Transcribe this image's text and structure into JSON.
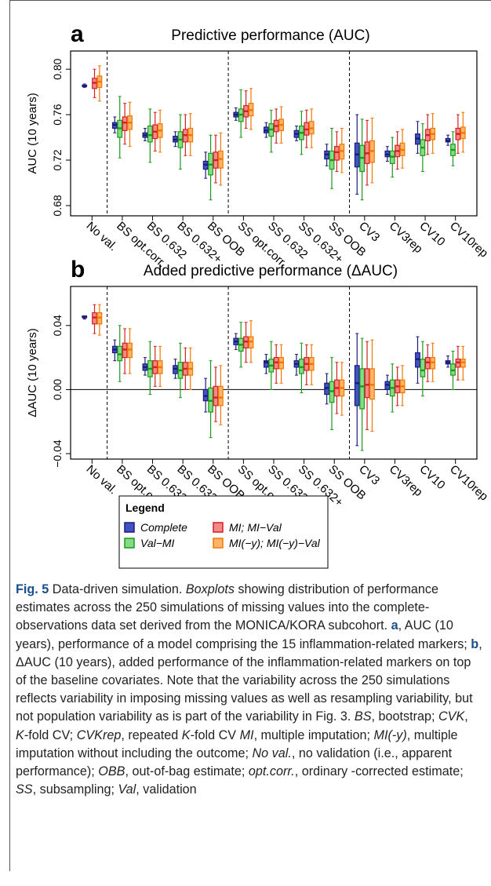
{
  "chart_data": [
    {
      "type": "boxplot",
      "panel_label": "a",
      "title": "Predictive performance (AUC)",
      "ylabel": "AUC (10 years)",
      "categories": [
        "No val.",
        "BS opt.corr.",
        "BS 0.632",
        "BS 0.632+",
        "BS OOB",
        "SS opt.corr.",
        "SS 0.632",
        "SS 0.632+",
        "SS OOB",
        "CV3",
        "CV3rep",
        "CV10",
        "CV10rep"
      ],
      "ylim": [
        0.671,
        0.816
      ],
      "yticks": [
        {
          "value": 0.68,
          "label": "0.68"
        },
        0.72,
        0.76,
        {
          "value": 0.8,
          "label": "0.80"
        }
      ],
      "legend_title": "Legend",
      "series": [
        {
          "name": "Complete",
          "color": "#1b1b7a",
          "fill": "#4252c4",
          "values": [
            [
              0.784,
              0.785,
              0.785,
              0.786,
              0.787
            ],
            [
              0.744,
              0.748,
              0.751,
              0.753,
              0.758
            ],
            [
              0.737,
              0.74,
              0.742,
              0.744,
              0.748
            ],
            [
              0.732,
              0.736,
              0.738,
              0.741,
              0.745
            ],
            [
              0.704,
              0.712,
              0.716,
              0.719,
              0.727
            ],
            [
              0.755,
              0.758,
              0.76,
              0.762,
              0.766
            ],
            [
              0.74,
              0.744,
              0.746,
              0.749,
              0.753
            ],
            [
              0.737,
              0.74,
              0.743,
              0.746,
              0.75
            ],
            [
              0.715,
              0.721,
              0.725,
              0.728,
              0.734
            ],
            [
              0.69,
              0.714,
              0.725,
              0.735,
              0.76
            ],
            [
              0.719,
              0.723,
              0.725,
              0.728,
              0.732
            ],
            [
              0.726,
              0.734,
              0.739,
              0.743,
              0.754
            ],
            [
              0.733,
              0.736,
              0.737,
              0.739,
              0.742
            ]
          ]
        },
        {
          "name": "Val−MI",
          "color": "#1a9a1a",
          "fill": "#86dc86",
          "values": [
            null,
            [
              0.722,
              0.74,
              0.748,
              0.755,
              0.776
            ],
            [
              0.718,
              0.736,
              0.742,
              0.75,
              0.765
            ],
            [
              0.712,
              0.731,
              0.738,
              0.745,
              0.76
            ],
            [
              0.685,
              0.707,
              0.716,
              0.726,
              0.742
            ],
            [
              0.74,
              0.754,
              0.76,
              0.765,
              0.782
            ],
            [
              0.727,
              0.741,
              0.747,
              0.752,
              0.764
            ],
            [
              0.725,
              0.738,
              0.744,
              0.75,
              0.763
            ],
            [
              0.695,
              0.712,
              0.72,
              0.728,
              0.748
            ],
            [
              0.685,
              0.71,
              0.722,
              0.733,
              0.756
            ],
            [
              0.705,
              0.717,
              0.723,
              0.728,
              0.74
            ],
            [
              0.71,
              0.724,
              0.731,
              0.738,
              0.752
            ],
            [
              0.715,
              0.724,
              0.729,
              0.734,
              0.745
            ]
          ]
        },
        {
          "name": "MI; MI−Val",
          "color": "#d42020",
          "fill": "#f28a8a",
          "values": [
            [
              0.775,
              0.783,
              0.788,
              0.792,
              0.8
            ],
            [
              0.734,
              0.746,
              0.753,
              0.758,
              0.77
            ],
            [
              0.728,
              0.739,
              0.745,
              0.751,
              0.762
            ],
            [
              0.724,
              0.736,
              0.742,
              0.747,
              0.76
            ],
            [
              0.7,
              0.713,
              0.72,
              0.727,
              0.742
            ],
            [
              0.748,
              0.758,
              0.763,
              0.768,
              0.781
            ],
            [
              0.735,
              0.745,
              0.75,
              0.755,
              0.765
            ],
            [
              0.731,
              0.742,
              0.747,
              0.753,
              0.764
            ],
            [
              0.71,
              0.72,
              0.727,
              0.732,
              0.745
            ],
            [
              0.698,
              0.717,
              0.726,
              0.736,
              0.755
            ],
            [
              0.712,
              0.723,
              0.728,
              0.733,
              0.745
            ],
            [
              0.725,
              0.737,
              0.742,
              0.747,
              0.76
            ],
            [
              0.726,
              0.738,
              0.743,
              0.748,
              0.76
            ]
          ]
        },
        {
          "name": "MI(−y); MI(−y)−Val",
          "color": "#f07800",
          "fill": "#ffb46c",
          "values": [
            [
              0.772,
              0.784,
              0.789,
              0.794,
              0.803
            ],
            [
              0.732,
              0.747,
              0.753,
              0.759,
              0.771
            ],
            [
              0.727,
              0.74,
              0.746,
              0.752,
              0.764
            ],
            [
              0.724,
              0.736,
              0.742,
              0.748,
              0.761
            ],
            [
              0.698,
              0.713,
              0.721,
              0.728,
              0.744
            ],
            [
              0.747,
              0.759,
              0.764,
              0.77,
              0.783
            ],
            [
              0.735,
              0.746,
              0.751,
              0.756,
              0.767
            ],
            [
              0.731,
              0.743,
              0.748,
              0.754,
              0.765
            ],
            [
              0.709,
              0.721,
              0.728,
              0.734,
              0.748
            ],
            [
              0.7,
              0.718,
              0.728,
              0.737,
              0.757
            ],
            [
              0.713,
              0.724,
              0.729,
              0.735,
              0.747
            ],
            [
              0.726,
              0.738,
              0.743,
              0.748,
              0.761
            ],
            [
              0.727,
              0.739,
              0.744,
              0.749,
              0.762
            ]
          ]
        }
      ]
    },
    {
      "type": "boxplot",
      "panel_label": "b",
      "title": "Added predictive performance (ΔAUC)",
      "ylabel": "ΔAUC (10 years)",
      "categories": [
        "No val.",
        "BS opt.corr.",
        "BS 0.632",
        "BS 0.632+",
        "BS OOB",
        "SS opt.corr.",
        "SS 0.632",
        "SS 0.632+",
        "SS OOB",
        "CV3",
        "CV3rep",
        "CV10",
        "CV10rep"
      ],
      "ylim": [
        -0.0434,
        0.0644
      ],
      "yticks": [
        {
          "value": -0.04,
          "label": "−0.04"
        },
        {
          "value": 0,
          "label": "0.00"
        },
        0.04
      ],
      "series": [
        {
          "color": "#1b1b7a",
          "fill": "#4252c4",
          "values": [
            [
              0.044,
              0.045,
              0.045,
              0.046,
              0.046
            ],
            [
              0.018,
              0.023,
              0.025,
              0.027,
              0.031
            ],
            [
              0.009,
              0.012,
              0.014,
              0.016,
              0.02
            ],
            [
              0.007,
              0.01,
              0.013,
              0.015,
              0.019
            ],
            [
              -0.014,
              -0.007,
              -0.004,
              0.0,
              0.007
            ],
            [
              0.025,
              0.028,
              0.03,
              0.032,
              0.035
            ],
            [
              0.01,
              0.014,
              0.017,
              0.018,
              0.022
            ],
            [
              0.009,
              0.014,
              0.016,
              0.018,
              0.022
            ],
            [
              -0.009,
              -0.003,
              0.001,
              0.004,
              0.01
            ],
            [
              -0.035,
              -0.01,
              0.004,
              0.015,
              0.035
            ],
            [
              -0.003,
              0.0,
              0.003,
              0.005,
              0.009
            ],
            [
              0.004,
              0.014,
              0.019,
              0.023,
              0.033
            ],
            [
              0.014,
              0.016,
              0.017,
              0.018,
              0.021
            ]
          ]
        },
        {
          "color": "#1a9a1a",
          "fill": "#86dc86",
          "values": [
            null,
            [
              0.005,
              0.018,
              0.022,
              0.027,
              0.04
            ],
            [
              -0.003,
              0.008,
              0.013,
              0.018,
              0.03
            ],
            [
              -0.005,
              0.007,
              0.012,
              0.017,
              0.029
            ],
            [
              -0.03,
              -0.014,
              -0.007,
              0.001,
              0.018
            ],
            [
              0.014,
              0.024,
              0.028,
              0.032,
              0.042
            ],
            [
              0.0,
              0.011,
              0.015,
              0.019,
              0.03
            ],
            [
              -0.002,
              0.01,
              0.014,
              0.019,
              0.029
            ],
            [
              -0.025,
              -0.008,
              -0.001,
              0.005,
              0.02
            ],
            [
              -0.038,
              -0.012,
              0.002,
              0.013,
              0.032
            ],
            [
              -0.014,
              -0.004,
              0.001,
              0.006,
              0.016
            ],
            [
              -0.004,
              0.008,
              0.012,
              0.019,
              0.03
            ],
            [
              0.0,
              0.009,
              0.012,
              0.016,
              0.024
            ]
          ]
        },
        {
          "color": "#d42020",
          "fill": "#f28a8a",
          "values": [
            [
              0.035,
              0.041,
              0.045,
              0.048,
              0.053
            ],
            [
              0.01,
              0.02,
              0.025,
              0.029,
              0.038
            ],
            [
              0.002,
              0.01,
              0.014,
              0.018,
              0.027
            ],
            [
              0.0,
              0.009,
              0.013,
              0.017,
              0.026
            ],
            [
              -0.02,
              -0.01,
              -0.005,
              0.002,
              0.014
            ],
            [
              0.017,
              0.026,
              0.03,
              0.033,
              0.042
            ],
            [
              0.004,
              0.013,
              0.017,
              0.02,
              0.028
            ],
            [
              0.003,
              0.012,
              0.016,
              0.02,
              0.028
            ],
            [
              -0.015,
              -0.004,
              0.001,
              0.006,
              0.017
            ],
            [
              -0.025,
              -0.005,
              0.003,
              0.013,
              0.03
            ],
            [
              -0.01,
              -0.002,
              0.002,
              0.006,
              0.014
            ],
            [
              0.005,
              0.013,
              0.017,
              0.02,
              0.028
            ],
            [
              0.006,
              0.014,
              0.017,
              0.019,
              0.027
            ]
          ]
        },
        {
          "color": "#f07800",
          "fill": "#ffb46c",
          "values": [
            [
              0.034,
              0.041,
              0.045,
              0.048,
              0.053
            ],
            [
              0.01,
              0.02,
              0.025,
              0.029,
              0.038
            ],
            [
              0.002,
              0.01,
              0.014,
              0.018,
              0.027
            ],
            [
              0.0,
              0.009,
              0.013,
              0.017,
              0.026
            ],
            [
              -0.022,
              -0.01,
              -0.005,
              0.002,
              0.015
            ],
            [
              0.017,
              0.026,
              0.03,
              0.033,
              0.043
            ],
            [
              0.004,
              0.013,
              0.017,
              0.02,
              0.028
            ],
            [
              0.003,
              0.012,
              0.016,
              0.02,
              0.028
            ],
            [
              -0.016,
              -0.004,
              0.001,
              0.006,
              0.017
            ],
            [
              -0.026,
              -0.006,
              0.003,
              0.013,
              0.031
            ],
            [
              -0.01,
              -0.002,
              0.002,
              0.006,
              0.015
            ],
            [
              0.005,
              0.013,
              0.017,
              0.02,
              0.029
            ],
            [
              0.006,
              0.014,
              0.017,
              0.019,
              0.027
            ]
          ]
        }
      ]
    }
  ],
  "caption": [
    {
      "text": "Fig. 5",
      "style": "bold"
    },
    {
      "text": " Data-driven simulation. "
    },
    {
      "text": "Boxplots",
      "style": "italic"
    },
    {
      "text": " showing distribution of performance estimates across the 250 simulations of missing values into the complete-observations data set derived from the MONICA/KORA subcohort. "
    },
    {
      "text": "a",
      "style": "bold"
    },
    {
      "text": ", AUC (10 years), performance of a model comprising the 15 inflammation-related markers; "
    },
    {
      "text": "b",
      "style": "bold"
    },
    {
      "text": ", ΔAUC (10 years), added performance of the inflammation-related markers on top of the baseline covariates. Note that the variability across the 250 simulations reflects variability in imposing missing values as well as resampling variability, but not population variability as is part of the variability in Fig. 3. "
    },
    {
      "text": "BS",
      "style": "italic"
    },
    {
      "text": ", bootstrap; "
    },
    {
      "text": "CVK",
      "style": "italic"
    },
    {
      "text": ", "
    },
    {
      "text": "K",
      "style": "italic"
    },
    {
      "text": "-fold CV; "
    },
    {
      "text": "CVKrep",
      "style": "italic"
    },
    {
      "text": ", repeated "
    },
    {
      "text": "K",
      "style": "italic"
    },
    {
      "text": "-fold CV "
    },
    {
      "text": "MI",
      "style": "italic"
    },
    {
      "text": ", multiple imputation; "
    },
    {
      "text": "MI(-y)",
      "style": "italic"
    },
    {
      "text": ", multiple imputation without including the outcome; "
    },
    {
      "text": "No val.",
      "style": "italic"
    },
    {
      "text": ", no validation (i.e., apparent performance); "
    },
    {
      "text": "OBB",
      "style": "italic"
    },
    {
      "text": ", out-of-bag estimate; "
    },
    {
      "text": "opt.corr.",
      "style": "italic"
    },
    {
      "text": ", ordinary -corrected estimate; "
    },
    {
      "text": "SS",
      "style": "italic"
    },
    {
      "text": ", subsampling; "
    },
    {
      "text": "Val",
      "style": "italic"
    },
    {
      "text": ", validation"
    }
  ]
}
